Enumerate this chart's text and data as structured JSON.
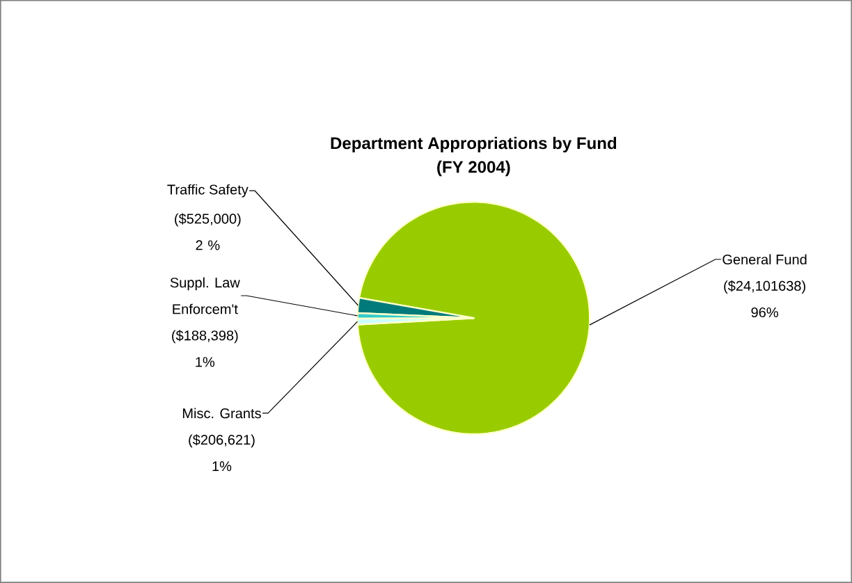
{
  "chart_data": {
    "type": "pie",
    "title": "Department Appropriations by Fund",
    "subtitle": "(FY 2004)",
    "categories": [
      "General Fund",
      "Traffic Safety",
      "Suppl. Law Enforcem't",
      "Misc. Grants"
    ],
    "values": [
      24101638,
      525000,
      188398,
      206621
    ],
    "colors": [
      "#99cc00",
      "#007a7a",
      "#33cccc",
      "#ccffff"
    ],
    "value_labels": [
      "($24,101638) 96%",
      "($525,000) 2 %",
      "($188,398) 1%",
      "($206,621) 1%"
    ]
  }
}
